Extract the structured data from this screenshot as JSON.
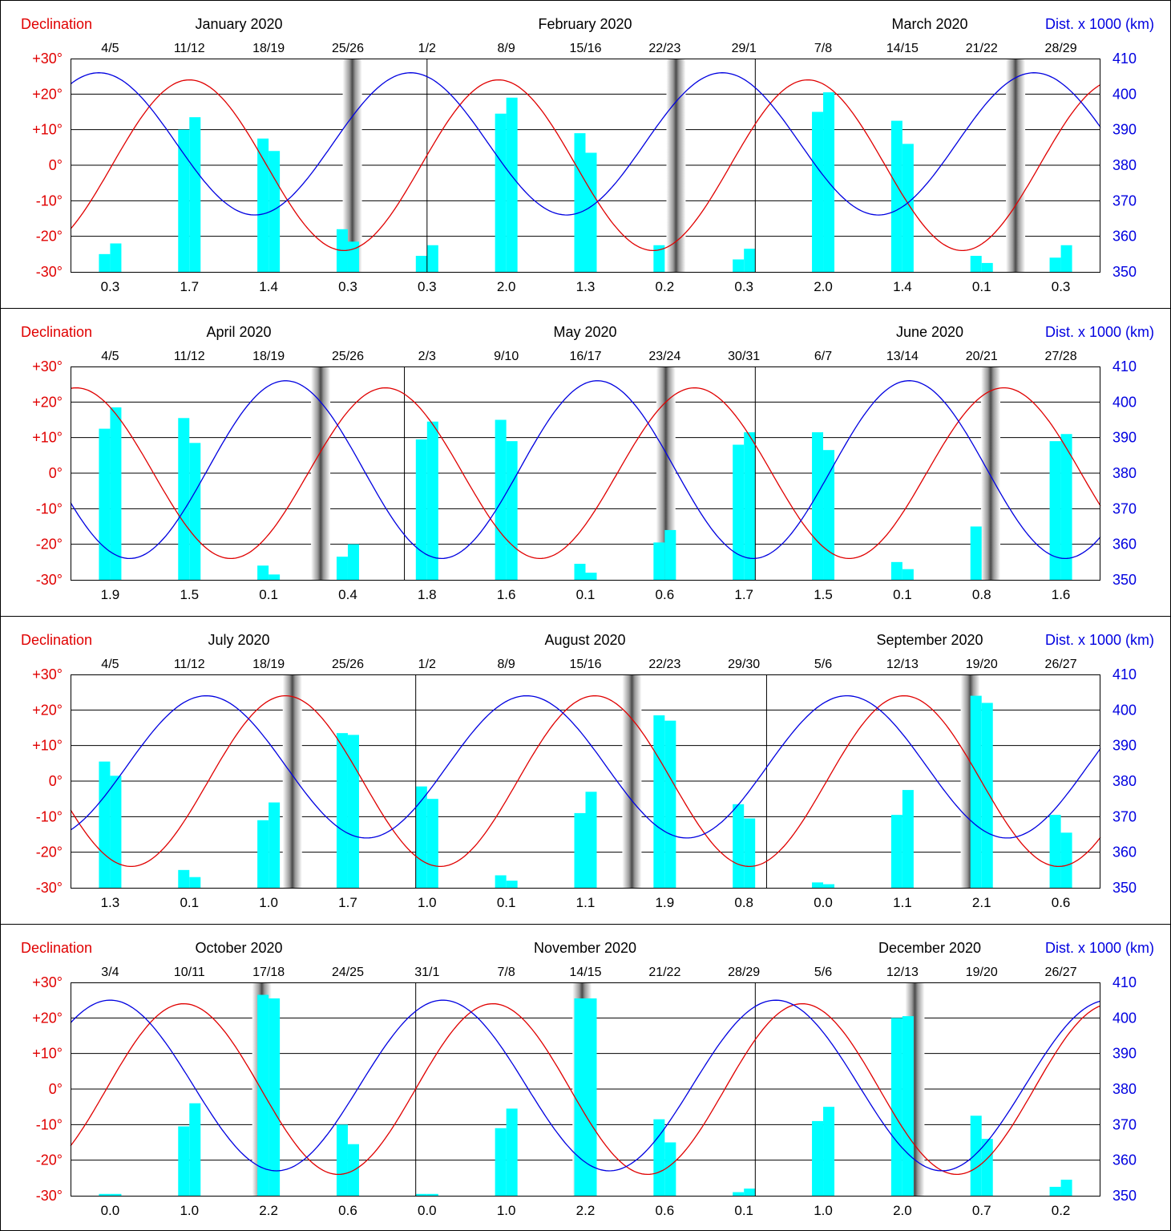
{
  "legend": {
    "left_label": "Declination",
    "right_label": "Dist. x 1000 (km)"
  },
  "colors": {
    "declination": "#e00000",
    "distance": "#0000e0",
    "bars": "#00ffff",
    "axis_left": "#e00000",
    "axis_right": "#0000e0"
  },
  "chart_data": [
    {
      "type": "bar",
      "months": [
        "January 2020",
        "February 2020",
        "March 2020"
      ],
      "date_labels": [
        "4/5",
        "11/12",
        "18/19",
        "25/26",
        "1/2",
        "8/9",
        "15/16",
        "22/23",
        "29/1",
        "7/8",
        "14/15",
        "21/22",
        "28/29"
      ],
      "ytick_labels_left": [
        "+30°",
        "+20°",
        "+10°",
        "0°",
        "-10°",
        "-20°",
        "-30°"
      ],
      "ytick_labels_right": [
        "410",
        "400",
        "390",
        "380",
        "370",
        "360",
        "350"
      ],
      "ylim_declination": [
        -30,
        30
      ],
      "ylim_distance": [
        350,
        410
      ],
      "pair_values": [
        "0.3",
        "1.7",
        "1.4",
        "0.3",
        "0.3",
        "2.0",
        "1.3",
        "0.2",
        "0.3",
        "2.0",
        "1.4",
        "0.1",
        "0.3"
      ],
      "tide_bars": [
        [
          -25,
          -22
        ],
        [
          10,
          13.5
        ],
        [
          7.5,
          4
        ],
        [
          -18,
          -21.5
        ],
        [
          -25.5,
          -22.5
        ],
        [
          14.5,
          19
        ],
        [
          9,
          3.5
        ],
        [
          -22.5,
          null
        ],
        [
          -26.5,
          -23.5
        ],
        [
          15,
          20.5
        ],
        [
          12.5,
          6
        ],
        [
          -25.5,
          -27.5
        ],
        [
          -26,
          -22.5
        ]
      ],
      "new_moon_days": [
        24.9,
        53.5,
        83.5
      ],
      "dec_start": -10,
      "dec_max_day": 10.5,
      "dec_period": 27.32,
      "dist_peak_day": 2.5,
      "dist_mid": 386,
      "dist_amp": 20,
      "dist_period": 27.55
    },
    {
      "type": "bar",
      "months": [
        "April 2020",
        "May 2020",
        "June 2020"
      ],
      "date_labels": [
        "4/5",
        "11/12",
        "18/19",
        "25/26",
        "2/3",
        "9/10",
        "16/17",
        "23/24",
        "30/31",
        "6/7",
        "13/14",
        "20/21",
        "27/28"
      ],
      "ytick_labels_left": [
        "+30°",
        "+20°",
        "+10°",
        "0°",
        "-10°",
        "-20°",
        "-30°"
      ],
      "ytick_labels_right": [
        "410",
        "400",
        "390",
        "380",
        "370",
        "360",
        "350"
      ],
      "ylim_declination": [
        -30,
        30
      ],
      "ylim_distance": [
        350,
        410
      ],
      "pair_values": [
        "1.9",
        "1.5",
        "0.1",
        "0.4",
        "1.8",
        "1.6",
        "0.1",
        "0.6",
        "1.7",
        "1.5",
        "0.1",
        "0.8",
        "1.6"
      ],
      "tide_bars": [
        [
          12.5,
          18.5
        ],
        [
          15.5,
          8.5
        ],
        [
          -26,
          -28.5
        ],
        [
          -23.5,
          -20
        ],
        [
          9.5,
          14.5
        ],
        [
          15,
          9
        ],
        [
          -25.5,
          -28
        ],
        [
          -19.5,
          -16
        ],
        [
          8,
          11.5
        ],
        [
          11.5,
          6.5
        ],
        [
          -25,
          -27
        ],
        [
          -15,
          null
        ],
        [
          9,
          11
        ]
      ],
      "new_moon_days": [
        22.1,
        52.6,
        81.3
      ],
      "dec_start": 24,
      "dec_max_day": 0.5,
      "dec_period": 27.32,
      "dist_peak_day": 19,
      "dist_mid": 381,
      "dist_amp": 25,
      "dist_period": 27.55
    },
    {
      "type": "bar",
      "months": [
        "July 2020",
        "August 2020",
        "September 2020"
      ],
      "date_labels": [
        "4/5",
        "11/12",
        "18/19",
        "25/26",
        "1/2",
        "8/9",
        "15/16",
        "22/23",
        "29/30",
        "5/6",
        "12/13",
        "19/20",
        "26/27"
      ],
      "ytick_labels_left": [
        "+30°",
        "+20°",
        "+10°",
        "0°",
        "-10°",
        "-20°",
        "-30°"
      ],
      "ytick_labels_right": [
        "410",
        "400",
        "390",
        "380",
        "370",
        "360",
        "350"
      ],
      "ylim_declination": [
        -30,
        30
      ],
      "ylim_distance": [
        350,
        410
      ],
      "pair_values": [
        "1.3",
        "0.1",
        "1.0",
        "1.7",
        "1.0",
        "0.1",
        "1.1",
        "1.9",
        "0.8",
        "0.0",
        "1.1",
        "2.1",
        "0.6"
      ],
      "tide_bars": [
        [
          5.5,
          1.5
        ],
        [
          -25,
          -27
        ],
        [
          -11,
          -6
        ],
        [
          13.5,
          13
        ],
        [
          -1.5,
          -5
        ],
        [
          -26.5,
          -28
        ],
        [
          -9,
          -3
        ],
        [
          18.5,
          17
        ],
        [
          -6.5,
          -10.5
        ],
        [
          -28.5,
          -29
        ],
        [
          -9.5,
          -2.5
        ],
        [
          24,
          22
        ],
        [
          -9.5,
          -14.5
        ]
      ],
      "new_moon_days": [
        19.6,
        49.6,
        79.5
      ],
      "dec_start": -13,
      "dec_max_day": 19,
      "dec_period": 27.32,
      "dist_peak_day": 12,
      "dist_mid": 384,
      "dist_amp": 20,
      "dist_period": 28.3
    },
    {
      "type": "bar",
      "months": [
        "October 2020",
        "November 2020",
        "December 2020"
      ],
      "date_labels": [
        "3/4",
        "10/11",
        "17/18",
        "24/25",
        "31/1",
        "7/8",
        "14/15",
        "21/22",
        "28/29",
        "5/6",
        "12/13",
        "19/20",
        "26/27"
      ],
      "ytick_labels_left": [
        "+30°",
        "+20°",
        "+10°",
        "0°",
        "-10°",
        "-20°",
        "-30°"
      ],
      "ytick_labels_right": [
        "410",
        "400",
        "390",
        "380",
        "370",
        "360",
        "350"
      ],
      "ylim_declination": [
        -30,
        30
      ],
      "ylim_distance": [
        350,
        410
      ],
      "pair_values": [
        "0.0",
        "1.0",
        "2.2",
        "0.6",
        "0.0",
        "1.0",
        "2.2",
        "0.6",
        "0.1",
        "1.0",
        "2.0",
        "0.7",
        "0.2"
      ],
      "tide_bars": [
        [
          -29.5,
          -29.5
        ],
        [
          -10.5,
          -4
        ],
        [
          26.5,
          25.5
        ],
        [
          -10,
          -15.5
        ],
        [
          -29.5,
          -29.5
        ],
        [
          -11,
          -5.5
        ],
        [
          25.5,
          25.5
        ],
        [
          -8.5,
          -15
        ],
        [
          -29,
          -28
        ],
        [
          -9,
          -5
        ],
        [
          20,
          20.5
        ],
        [
          -7.5,
          -14
        ],
        [
          -27.5,
          -25.5
        ]
      ],
      "new_moon_days": [
        16.9,
        45.2,
        74.6
      ],
      "dec_start": -5,
      "dec_max_day": 10,
      "dec_period": 27.32,
      "dist_peak_day": 3.5,
      "dist_mid": 381,
      "dist_amp": 24,
      "dist_period": 29.4
    }
  ]
}
